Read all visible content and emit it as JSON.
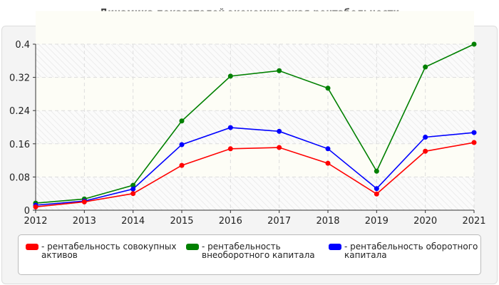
{
  "chart_data": {
    "type": "line",
    "title": "Динамика показателей экономическая рентабельности",
    "xlabel": "",
    "ylabel": "",
    "categories": [
      "2012",
      "2013",
      "2014",
      "2015",
      "2016",
      "2017",
      "2018",
      "2019",
      "2020",
      "2021"
    ],
    "ylim": [
      0,
      0.4
    ],
    "yticks": [
      "0",
      "0.08",
      "0.16",
      "0.24",
      "0.32",
      "0.4"
    ],
    "grid": true,
    "legend_position": "bottom",
    "series": [
      {
        "name": "- рентабельность совокупных активов",
        "color": "#ff0000",
        "values": [
          0.008,
          0.02,
          0.04,
          0.108,
          0.148,
          0.151,
          0.113,
          0.039,
          0.142,
          0.163
        ]
      },
      {
        "name": "- рентабельность внеоборотного капитала",
        "color": "#008000",
        "values": [
          0.017,
          0.027,
          0.06,
          0.215,
          0.323,
          0.336,
          0.294,
          0.094,
          0.345,
          0.4
        ]
      },
      {
        "name": "- рентабельность оборотного капитала",
        "color": "#0000ff",
        "values": [
          0.012,
          0.022,
          0.051,
          0.158,
          0.199,
          0.19,
          0.148,
          0.052,
          0.176,
          0.187
        ]
      }
    ]
  }
}
